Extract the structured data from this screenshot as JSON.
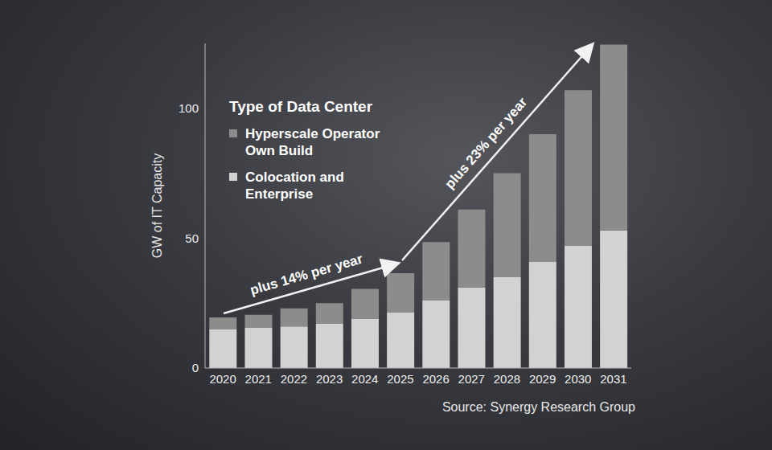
{
  "chart_data": {
    "type": "bar",
    "stacked": true,
    "categories": [
      "2020",
      "2021",
      "2022",
      "2023",
      "2024",
      "2025",
      "2026",
      "2027",
      "2028",
      "2029",
      "2030",
      "2031"
    ],
    "y_label": "GW of IT Capacity",
    "ylim": [
      0,
      125
    ],
    "yticks": [
      0,
      50,
      100
    ],
    "grid": false,
    "legend": "upper left",
    "legend_title": "Type of Data Center",
    "series": [
      {
        "name": "Hyperscale Operator Own Build",
        "color": "#8c8c8c",
        "values": [
          4.5,
          5,
          7,
          8,
          11.5,
          15,
          22.5,
          30,
          40,
          49,
          60,
          71.5
        ]
      },
      {
        "name": "Colocation and Enterprise",
        "color": "#d2d2d2",
        "values": [
          15,
          15.5,
          16,
          17,
          19,
          21.5,
          26,
          31,
          35,
          41,
          47,
          53
        ]
      }
    ],
    "annotations": [
      "plus 14% per year",
      "plus 23% per year"
    ],
    "source": "Source: Synergy Research Group"
  }
}
